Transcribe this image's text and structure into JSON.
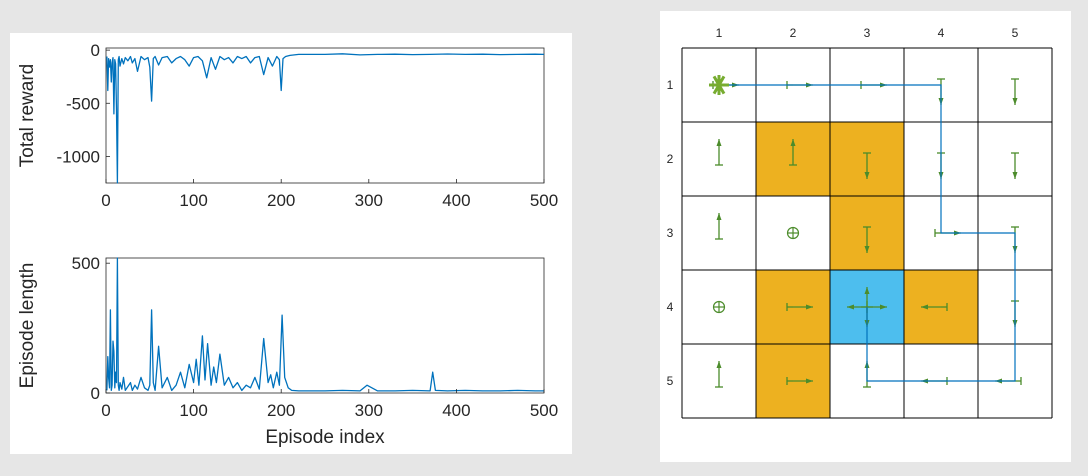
{
  "chart_data": [
    {
      "type": "line",
      "ylabel": "Total reward",
      "xlabel": "",
      "xlim": [
        0,
        500
      ],
      "ylim": [
        -1250,
        20
      ],
      "xticks": [
        "0",
        "100",
        "200",
        "300",
        "400",
        "500"
      ],
      "yticks": [
        "0",
        "-500",
        "-1000"
      ],
      "color": "#0072BD",
      "series": [
        {
          "x": [
            1,
            2,
            3,
            4,
            5,
            6,
            7,
            8,
            9,
            10,
            11,
            12,
            13,
            14,
            15,
            16,
            18,
            20,
            22,
            25,
            28,
            30,
            33,
            36,
            40,
            44,
            48,
            50,
            52,
            54,
            56,
            60,
            64,
            70,
            75,
            80,
            85,
            90,
            95,
            100,
            105,
            110,
            115,
            120,
            125,
            130,
            135,
            140,
            145,
            150,
            155,
            160,
            165,
            170,
            175,
            180,
            185,
            190,
            195,
            198,
            200,
            202,
            205,
            210,
            220,
            230,
            250,
            270,
            290,
            310,
            330,
            350,
            370,
            390,
            410,
            430,
            450,
            470,
            490,
            500
          ],
          "y": [
            -60,
            -380,
            -80,
            -160,
            -90,
            -300,
            -120,
            -70,
            -600,
            -90,
            -130,
            -560,
            -1250,
            -90,
            -60,
            -150,
            -80,
            -130,
            -70,
            -100,
            -60,
            -120,
            -80,
            -200,
            -60,
            -90,
            -70,
            -160,
            -480,
            -80,
            -60,
            -140,
            -70,
            -60,
            -120,
            -80,
            -60,
            -90,
            -150,
            -70,
            -60,
            -100,
            -260,
            -70,
            -180,
            -60,
            -90,
            -70,
            -120,
            -60,
            -80,
            -60,
            -120,
            -70,
            -60,
            -230,
            -70,
            -150,
            -60,
            -90,
            -380,
            -80,
            -60,
            -50,
            -40,
            -40,
            -40,
            -35,
            -45,
            -40,
            -38,
            -42,
            -40,
            -36,
            -40,
            -38,
            -42,
            -40,
            -38,
            -40
          ]
        }
      ]
    },
    {
      "type": "line",
      "ylabel": "Episode length",
      "xlabel": "Episode index",
      "xlim": [
        0,
        500
      ],
      "ylim": [
        0,
        520
      ],
      "xticks": [
        "0",
        "100",
        "200",
        "300",
        "400",
        "500"
      ],
      "yticks": [
        "500",
        "0"
      ],
      "color": "#0072BD",
      "series": [
        {
          "x": [
            1,
            2,
            3,
            4,
            5,
            6,
            7,
            8,
            9,
            10,
            11,
            12,
            13,
            14,
            15,
            16,
            18,
            20,
            22,
            25,
            28,
            30,
            33,
            36,
            40,
            44,
            48,
            50,
            52,
            54,
            56,
            60,
            64,
            70,
            75,
            80,
            85,
            90,
            95,
            100,
            103,
            106,
            110,
            113,
            116,
            120,
            123,
            126,
            130,
            135,
            140,
            145,
            150,
            155,
            160,
            165,
            170,
            175,
            180,
            185,
            188,
            191,
            195,
            198,
            201,
            204,
            208,
            212,
            220,
            230,
            250,
            270,
            290,
            298,
            310,
            330,
            350,
            370,
            373,
            376,
            390,
            410,
            430,
            450,
            470,
            490,
            500
          ],
          "y": [
            10,
            140,
            60,
            20,
            320,
            10,
            30,
            200,
            160,
            20,
            80,
            40,
            520,
            30,
            10,
            40,
            15,
            60,
            10,
            25,
            40,
            10,
            30,
            15,
            60,
            20,
            10,
            30,
            320,
            40,
            10,
            180,
            20,
            60,
            10,
            30,
            80,
            20,
            110,
            40,
            130,
            30,
            220,
            50,
            190,
            30,
            100,
            40,
            150,
            30,
            60,
            20,
            40,
            10,
            30,
            20,
            60,
            15,
            210,
            40,
            70,
            20,
            80,
            30,
            300,
            60,
            20,
            10,
            8,
            8,
            8,
            10,
            8,
            30,
            8,
            8,
            10,
            8,
            80,
            10,
            8,
            10,
            8,
            8,
            10,
            8,
            8
          ]
        }
      ]
    },
    {
      "type": "heatmap",
      "col_labels": [
        "1",
        "2",
        "3",
        "4",
        "5"
      ],
      "row_labels": [
        "1",
        "2",
        "3",
        "4",
        "5"
      ],
      "colors": {
        "orange": "#EDB120",
        "blue": "#4DBEEE",
        "arrow": "#4C8C2B",
        "path": "#0072BD"
      },
      "orange_cells": [
        [
          2,
          2
        ],
        [
          2,
          3
        ],
        [
          3,
          3
        ],
        [
          4,
          2
        ],
        [
          4,
          4
        ],
        [
          5,
          2
        ]
      ],
      "blue_cells": [
        [
          4,
          3
        ]
      ],
      "start_cell": [
        1,
        1
      ],
      "circle_cells": [
        [
          3,
          2
        ],
        [
          4,
          1
        ]
      ],
      "cell_actions": [
        {
          "row": 1,
          "col": 1,
          "dirs": [
            "right"
          ]
        },
        {
          "row": 1,
          "col": 2,
          "dirs": [
            "right"
          ]
        },
        {
          "row": 1,
          "col": 3,
          "dirs": [
            "right"
          ]
        },
        {
          "row": 1,
          "col": 4,
          "dirs": [
            "down"
          ]
        },
        {
          "row": 1,
          "col": 5,
          "dirs": [
            "down"
          ]
        },
        {
          "row": 2,
          "col": 1,
          "dirs": [
            "up"
          ]
        },
        {
          "row": 2,
          "col": 2,
          "dirs": [
            "up"
          ]
        },
        {
          "row": 2,
          "col": 3,
          "dirs": [
            "down"
          ]
        },
        {
          "row": 2,
          "col": 4,
          "dirs": [
            "down"
          ]
        },
        {
          "row": 2,
          "col": 5,
          "dirs": [
            "down"
          ]
        },
        {
          "row": 3,
          "col": 1,
          "dirs": [
            "up"
          ]
        },
        {
          "row": 3,
          "col": 3,
          "dirs": [
            "down"
          ]
        },
        {
          "row": 3,
          "col": 4,
          "dirs": [
            "right"
          ]
        },
        {
          "row": 3,
          "col": 5,
          "dirs": [
            "down"
          ]
        },
        {
          "row": 4,
          "col": 2,
          "dirs": [
            "right"
          ]
        },
        {
          "row": 4,
          "col": 3,
          "dirs": [
            "up",
            "down",
            "left",
            "right"
          ]
        },
        {
          "row": 4,
          "col": 4,
          "dirs": [
            "left"
          ]
        },
        {
          "row": 4,
          "col": 5,
          "dirs": [
            "down"
          ]
        },
        {
          "row": 5,
          "col": 1,
          "dirs": [
            "up"
          ]
        },
        {
          "row": 5,
          "col": 2,
          "dirs": [
            "right"
          ]
        },
        {
          "row": 5,
          "col": 3,
          "dirs": [
            "up"
          ]
        },
        {
          "row": 5,
          "col": 4,
          "dirs": [
            "left"
          ]
        },
        {
          "row": 5,
          "col": 5,
          "dirs": [
            "left"
          ]
        }
      ],
      "path": [
        [
          1,
          1
        ],
        [
          1,
          2
        ],
        [
          1,
          3
        ],
        [
          1,
          4
        ],
        [
          2,
          4
        ],
        [
          3,
          4
        ],
        [
          3,
          5
        ],
        [
          4,
          5
        ],
        [
          5,
          5
        ],
        [
          5,
          4
        ],
        [
          5,
          3
        ],
        [
          4,
          3
        ]
      ]
    }
  ]
}
